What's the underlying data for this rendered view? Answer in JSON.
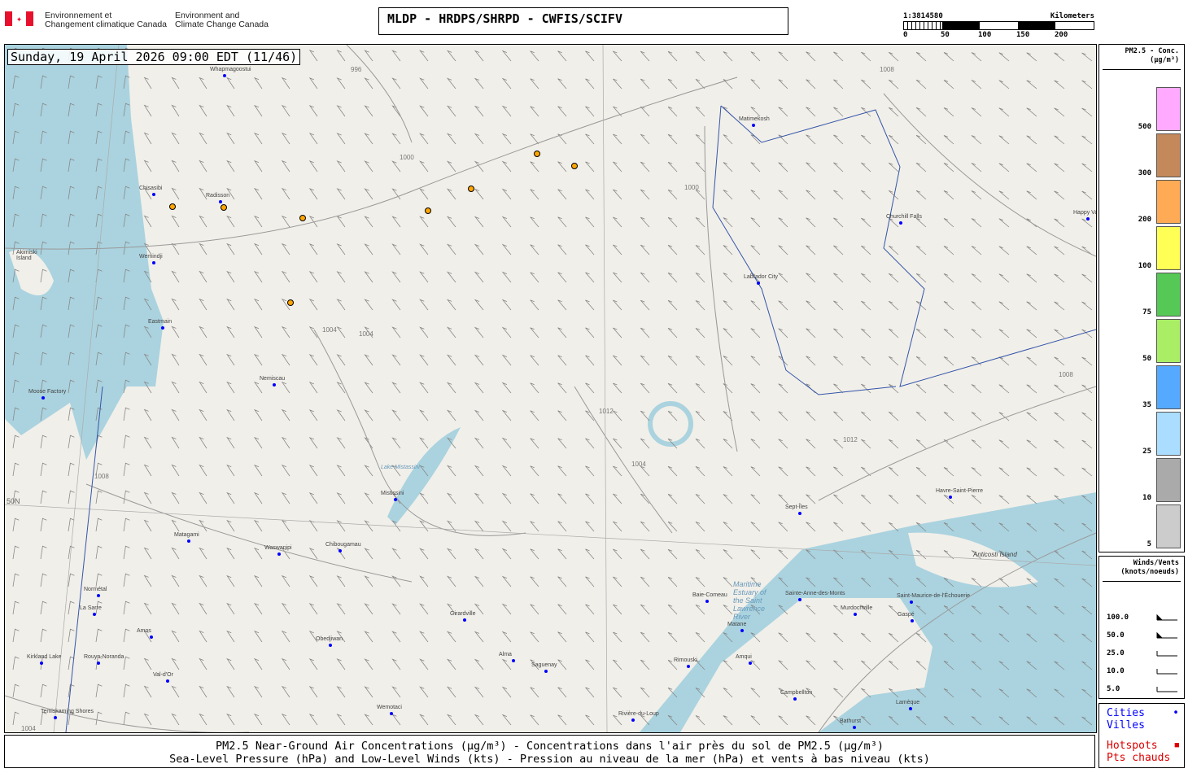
{
  "header": {
    "org_fr": [
      "Environnement et",
      "Changement climatique Canada"
    ],
    "org_en": [
      "Environment and",
      "Climate Change Canada"
    ],
    "title": "MLDP  -  HRDPS/SHRPD  -  CWFIS/SCIFV"
  },
  "scale": {
    "ratio": "1:3814580",
    "unit": "Kilometers",
    "ticks": [
      "0",
      "50",
      "100",
      "150",
      "200"
    ]
  },
  "map": {
    "datetime": "Sunday, 19 April 2026 09:00 EDT (11/46)",
    "lat_label": "50N",
    "isobars": [
      "1000",
      "1004",
      "1004",
      "1008",
      "1008",
      "1012",
      "1012",
      "1004",
      "1004",
      "1008",
      "1000",
      "996"
    ],
    "water_labels": [
      "Akimiski Island",
      "Lake Mistassini",
      "Anticosti Island",
      "Maritime Estuary of the Saint Lawrence River"
    ],
    "cities": [
      "Whapmagoostui",
      "Chisasibi",
      "Radisson",
      "Wemindji",
      "Eastmain",
      "Moose Factory",
      "Nemiscau",
      "Mistissini",
      "Matagami",
      "Waswanipi",
      "Chibougamau",
      "Normétal",
      "La Sarre",
      "Amos",
      "Kirkland Lake",
      "Rouyn-Noranda",
      "Val-d'Or",
      "Temiskaming Shores",
      "Obedjiwan",
      "Girardville",
      "Alma",
      "Saguenay",
      "Wemotaci",
      "Baie-Comeau",
      "Sept-Îles",
      "Havre-Saint-Pierre",
      "Churchill Falls",
      "Happy Valley-Goose Bay",
      "Labrador City",
      "Matimekosh",
      "Sainte-Anne-des-Monts",
      "Murdochville",
      "Gaspé",
      "Saint-Maurice-de-l'Échouerie",
      "Matane",
      "Amqui",
      "Rimouski",
      "Campbellton",
      "Bathurst",
      "Lamèque",
      "Rivière-du-Loup"
    ],
    "hotspot_count": 8
  },
  "legend": {
    "title": "PM2.5 - Conc.",
    "unit": "(µg/m³)",
    "levels": [
      {
        "label": "500",
        "color": "#ffaaff"
      },
      {
        "label": "300",
        "color": "#c4895a"
      },
      {
        "label": "200",
        "color": "#ffaa55"
      },
      {
        "label": "100",
        "color": "#ffff55"
      },
      {
        "label": "75",
        "color": "#55c855"
      },
      {
        "label": "50",
        "color": "#aaee66"
      },
      {
        "label": "35",
        "color": "#55aaff"
      },
      {
        "label": "25",
        "color": "#aaddff"
      },
      {
        "label": "10",
        "color": "#aaaaaa"
      },
      {
        "label": "5",
        "color": "#cccccc"
      }
    ]
  },
  "winds": {
    "title": "Winds/Vents",
    "unit": "(knots/noeuds)",
    "values": [
      "100.0",
      "50.0",
      "25.0",
      "10.0",
      "5.0"
    ]
  },
  "symbols": {
    "cities": "Cities",
    "villes": "Villes",
    "hotspots": "Hotspots",
    "pts": "Pts chauds",
    "city_color": "#0000ff",
    "hotspot_color": "#dd0000",
    "hotspot_fill": "#ffa500"
  },
  "footer": {
    "line1": "PM2.5 Near-Ground Air Concentrations (µg/m³) - Concentrations dans l'air près du sol de PM2.5 (µg/m³)",
    "line2": "Sea-Level Pressure (hPa) and Low-Level Winds (kts) - Pression au niveau de la mer (hPa) et vents à bas niveau (kts)"
  }
}
